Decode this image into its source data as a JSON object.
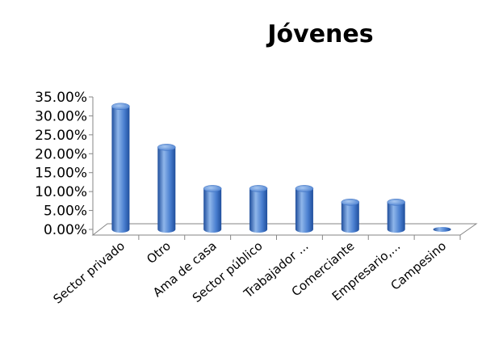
{
  "chart_data": {
    "type": "bar",
    "title": "Jóvenes",
    "style": "3d-cylinder",
    "categories": [
      "Sector privado",
      "Otro",
      "Ama de casa",
      "Sector público",
      "Trabajador ...",
      "Comerciante",
      "Empresario,...",
      "Campesino"
    ],
    "values": [
      32.5,
      21.7,
      10.8,
      10.8,
      10.8,
      7.2,
      7.2,
      0.0
    ],
    "value_unit": "%",
    "ylim": [
      0,
      35
    ],
    "yticks": [
      "0.00%",
      "5.00%",
      "10.00%",
      "15.00%",
      "20.00%",
      "25.00%",
      "30.00%",
      "35.00%"
    ],
    "xlabel": "",
    "ylabel": "",
    "grid": false,
    "legend": "none",
    "colors": {
      "bar_light": "#8fb6ea",
      "bar_mid": "#4a7fd0",
      "bar_dark": "#1f4e9c",
      "axis": "#868686"
    }
  }
}
